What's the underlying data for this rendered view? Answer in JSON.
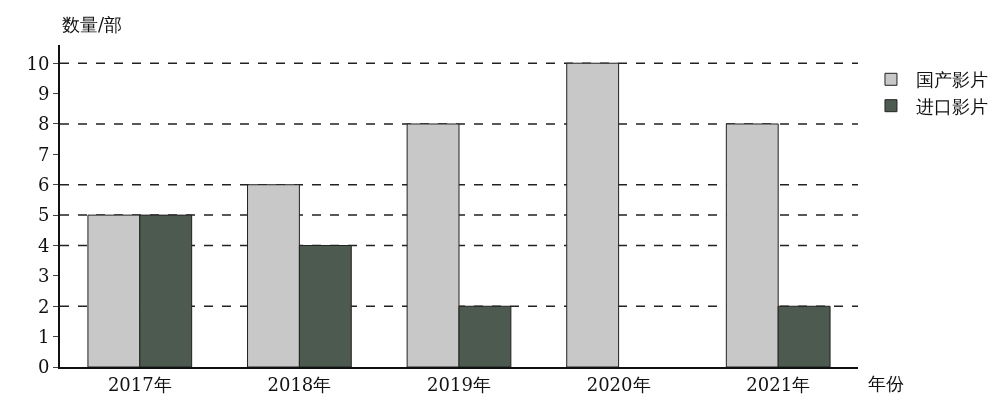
{
  "chart_data": {
    "type": "bar",
    "ylabel": "数量/部",
    "xlabel": "年份",
    "categories": [
      "2017年",
      "2018年",
      "2019年",
      "2020年",
      "2021年"
    ],
    "series": [
      {
        "name": "国产影片",
        "color": "#c8c8c8",
        "values": [
          5,
          6,
          8,
          10,
          8
        ]
      },
      {
        "name": "进口影片",
        "color": "#4d5a50",
        "values": [
          5,
          4,
          2,
          null,
          2
        ]
      }
    ],
    "ylim": [
      0,
      10.6
    ],
    "yticks": [
      0,
      1,
      2,
      3,
      4,
      5,
      6,
      7,
      8,
      9,
      10
    ],
    "ref_lines": [
      {
        "axis": "y",
        "value": 2,
        "line_style": "dashed",
        "color": "#222222"
      },
      {
        "axis": "y",
        "value": 4,
        "line_style": "dashed",
        "color": "#222222"
      },
      {
        "axis": "y",
        "value": 5,
        "line_style": "dashed",
        "color": "#222222"
      },
      {
        "axis": "y",
        "value": 6,
        "line_style": "dashed",
        "color": "#222222"
      },
      {
        "axis": "y",
        "value": 8,
        "line_style": "dashed",
        "color": "#222222"
      },
      {
        "axis": "y",
        "value": 10,
        "line_style": "dashed",
        "color": "#222222"
      }
    ],
    "grid": false,
    "legend": "top right"
  }
}
